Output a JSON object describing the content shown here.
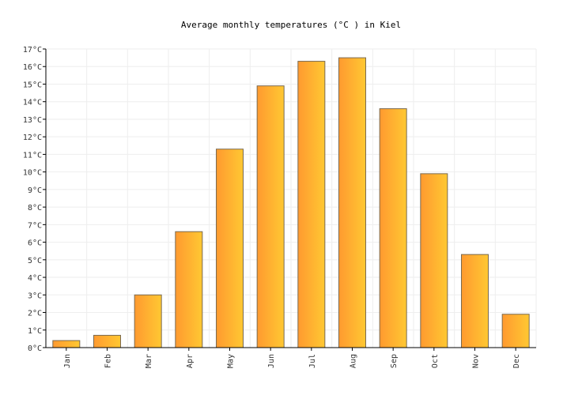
{
  "chart_data": {
    "type": "bar",
    "title": "Average monthly temperatures (°C ) in Kiel",
    "xlabel": "",
    "ylabel": "",
    "categories": [
      "Jan",
      "Feb",
      "Mar",
      "Apr",
      "May",
      "Jun",
      "Jul",
      "Aug",
      "Sep",
      "Oct",
      "Nov",
      "Dec"
    ],
    "values": [
      0.4,
      0.7,
      3.0,
      6.6,
      11.3,
      14.9,
      16.3,
      16.5,
      13.6,
      9.9,
      5.3,
      1.9
    ],
    "ylim": [
      0,
      17
    ],
    "yticks": [
      "0°C",
      "1°C",
      "2°C",
      "3°C",
      "4°C",
      "5°C",
      "6°C",
      "7°C",
      "8°C",
      "9°C",
      "10°C",
      "11°C",
      "12°C",
      "13°C",
      "14°C",
      "15°C",
      "16°C",
      "17°C"
    ],
    "grid": true,
    "legend": "none",
    "colors": {
      "bar_left": "#ff9a30",
      "bar_right": "#ffc832",
      "bar_stroke": "#7a6a50",
      "grid": "#eeeeee",
      "axis": "#000000"
    }
  }
}
